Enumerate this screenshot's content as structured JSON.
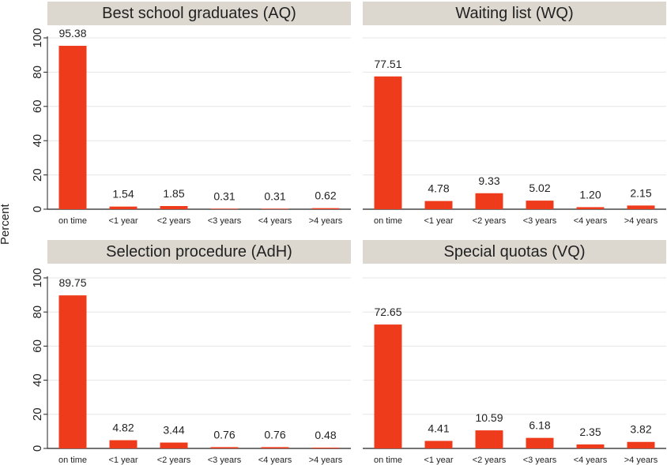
{
  "colors": {
    "bar": "#ee3b1c",
    "title_bg": "#dcd8d0",
    "grid": "#e6e6e6",
    "axis": "#222222"
  },
  "ylabel": "Percent",
  "chart_data": [
    {
      "type": "bar",
      "title": "Best school graduates (AQ)",
      "categories": [
        "on time",
        "<1 year",
        "<2 years",
        "<3 years",
        "<4 years",
        ">4 years"
      ],
      "values": [
        95.38,
        1.54,
        1.85,
        0.31,
        0.31,
        0.62
      ],
      "labels": [
        "95.38",
        "1.54",
        "1.85",
        "0.31",
        "0.31",
        "0.62"
      ],
      "ylim": [
        0,
        100
      ],
      "yticks": [
        0,
        20,
        40,
        60,
        80,
        100
      ],
      "grid": true,
      "show_y_axis": true
    },
    {
      "type": "bar",
      "title": "Waiting list (WQ)",
      "categories": [
        "on time",
        "<1 year",
        "<2 years",
        "<3 years",
        "<4 years",
        ">4 years"
      ],
      "values": [
        77.51,
        4.78,
        9.33,
        5.02,
        1.2,
        2.15
      ],
      "labels": [
        "77.51",
        "4.78",
        "9.33",
        "5.02",
        "1.20",
        "2.15"
      ],
      "ylim": [
        0,
        100
      ],
      "yticks": [
        0,
        20,
        40,
        60,
        80,
        100
      ],
      "grid": true,
      "show_y_axis": false
    },
    {
      "type": "bar",
      "title": "Selection procedure (AdH)",
      "categories": [
        "on time",
        "<1 year",
        "<2 years",
        "<3 years",
        "<4 years",
        ">4 years"
      ],
      "values": [
        89.75,
        4.82,
        3.44,
        0.76,
        0.76,
        0.48
      ],
      "labels": [
        "89.75",
        "4.82",
        "3.44",
        "0.76",
        "0.76",
        "0.48"
      ],
      "ylim": [
        0,
        100
      ],
      "yticks": [
        0,
        20,
        40,
        60,
        80,
        100
      ],
      "grid": true,
      "show_y_axis": true
    },
    {
      "type": "bar",
      "title": "Special quotas (VQ)",
      "categories": [
        "on time",
        "<1 year",
        "<2 years",
        "<3 years",
        "<4 years",
        ">4 years"
      ],
      "values": [
        72.65,
        4.41,
        10.59,
        6.18,
        2.35,
        3.82
      ],
      "labels": [
        "72.65",
        "4.41",
        "10.59",
        "6.18",
        "2.35",
        "3.82"
      ],
      "ylim": [
        0,
        100
      ],
      "yticks": [
        0,
        20,
        40,
        60,
        80,
        100
      ],
      "grid": true,
      "show_y_axis": false
    }
  ]
}
